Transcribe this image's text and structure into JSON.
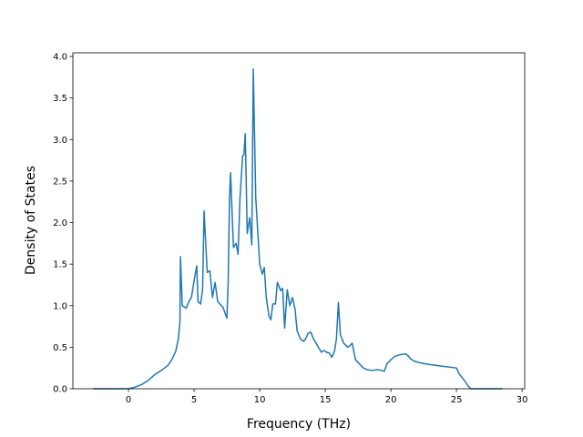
{
  "chart_data": {
    "type": "line",
    "xlabel": "Frequency (THz)",
    "ylabel": "Density of States",
    "color": "#1f77b4",
    "xlim": [
      -4.24,
      30.2
    ],
    "ylim": [
      0,
      4.044
    ],
    "xticks": [
      0,
      5,
      10,
      15,
      20,
      25,
      30
    ],
    "yticks": [
      {
        "value": 0,
        "label": "0.0"
      },
      0.5,
      {
        "value": 1,
        "label": "1.0"
      },
      1.5,
      {
        "value": 2,
        "label": "2.0"
      },
      2.5,
      {
        "value": 3,
        "label": "3.0"
      },
      3.5,
      {
        "value": 4,
        "label": "4.0"
      }
    ],
    "x": [
      -2.7,
      0,
      0.5,
      1.0,
      1.5,
      2.0,
      2.5,
      3.0,
      3.3,
      3.6,
      3.8,
      3.92,
      3.96,
      4.1,
      4.4,
      4.6,
      4.8,
      5.0,
      5.2,
      5.3,
      5.5,
      5.65,
      5.76,
      6.0,
      6.2,
      6.4,
      6.6,
      6.8,
      7.2,
      7.5,
      7.6,
      7.7,
      7.78,
      8.0,
      8.2,
      8.35,
      8.5,
      8.7,
      8.8,
      8.9,
      9.05,
      9.24,
      9.4,
      9.51,
      9.7,
      10.0,
      10.2,
      10.35,
      10.5,
      10.7,
      10.85,
      11.0,
      11.2,
      11.35,
      11.6,
      11.75,
      11.9,
      12.1,
      12.3,
      12.5,
      12.7,
      12.85,
      13.1,
      13.35,
      13.5,
      13.7,
      13.9,
      14.1,
      14.4,
      14.7,
      14.9,
      15.1,
      15.3,
      15.5,
      15.7,
      15.85,
      16.0,
      16.15,
      16.4,
      16.7,
      16.9,
      17.05,
      17.3,
      17.6,
      17.9,
      18.2,
      18.6,
      19.0,
      19.3,
      19.5,
      19.7,
      20.0,
      20.3,
      20.7,
      21.1,
      21.3,
      21.5,
      21.8,
      22.3,
      23.0,
      24.0,
      25.0,
      25.2,
      25.6,
      25.9,
      26.1,
      28.5
    ],
    "values": [
      0,
      0,
      0.02,
      0.05,
      0.1,
      0.17,
      0.22,
      0.28,
      0.35,
      0.45,
      0.6,
      0.8,
      1.59,
      1.0,
      0.97,
      1.05,
      1.1,
      1.3,
      1.48,
      1.05,
      1.02,
      1.2,
      2.14,
      1.4,
      1.42,
      1.1,
      1.28,
      1.05,
      0.98,
      0.85,
      1.3,
      2.3,
      2.6,
      1.7,
      1.75,
      1.62,
      2.3,
      2.8,
      2.82,
      3.07,
      1.87,
      2.06,
      1.73,
      3.85,
      2.3,
      1.5,
      1.38,
      1.46,
      1.1,
      0.88,
      0.83,
      1.02,
      1.02,
      1.28,
      1.18,
      1.21,
      0.73,
      1.19,
      1.0,
      1.1,
      0.95,
      0.7,
      0.6,
      0.57,
      0.6,
      0.67,
      0.68,
      0.6,
      0.52,
      0.44,
      0.46,
      0.44,
      0.43,
      0.38,
      0.45,
      0.6,
      1.04,
      0.65,
      0.55,
      0.5,
      0.52,
      0.55,
      0.35,
      0.3,
      0.25,
      0.23,
      0.22,
      0.23,
      0.22,
      0.21,
      0.3,
      0.35,
      0.39,
      0.41,
      0.42,
      0.4,
      0.36,
      0.33,
      0.31,
      0.29,
      0.27,
      0.25,
      0.18,
      0.1,
      0.03,
      0,
      0
    ]
  }
}
